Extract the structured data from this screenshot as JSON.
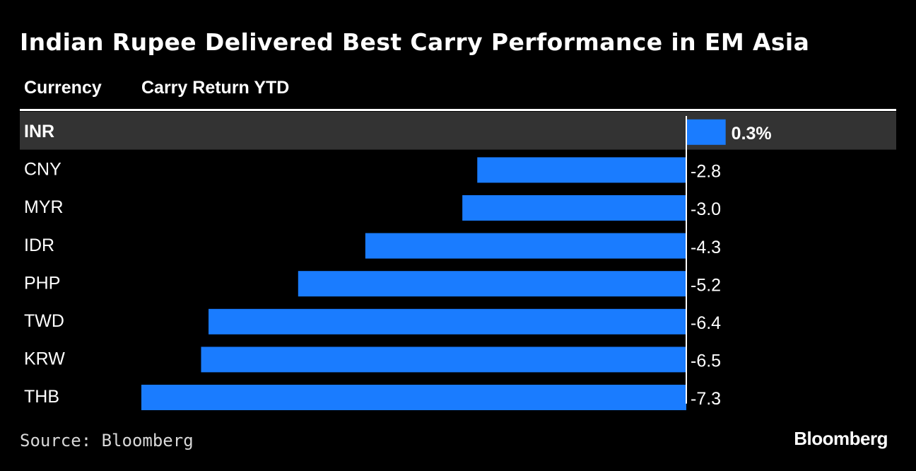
{
  "title": "Indian Rupee Delivered Best Carry Performance in EM Asia",
  "source": "Source: Bloomberg",
  "brand": "Bloomberg",
  "colors": {
    "background": "#000000",
    "bar": "#1a7cff",
    "highlight_row": "#333333",
    "text": "#ffffff"
  },
  "chart_data": {
    "type": "bar",
    "orientation": "horizontal",
    "headers": {
      "category": "Currency",
      "value": "Carry Return YTD"
    },
    "unit": "%",
    "highlight": "INR",
    "categories": [
      "INR",
      "CNY",
      "MYR",
      "IDR",
      "PHP",
      "TWD",
      "KRW",
      "THB"
    ],
    "values": [
      0.3,
      -2.8,
      -3.0,
      -4.3,
      -5.2,
      -6.4,
      -6.5,
      -7.3
    ],
    "labels": [
      "0.3%",
      "-2.8",
      "-3.0",
      "-4.3",
      "-5.2",
      "-6.4",
      "-6.5",
      "-7.3"
    ],
    "xlim": [
      -7.3,
      0.3
    ]
  }
}
